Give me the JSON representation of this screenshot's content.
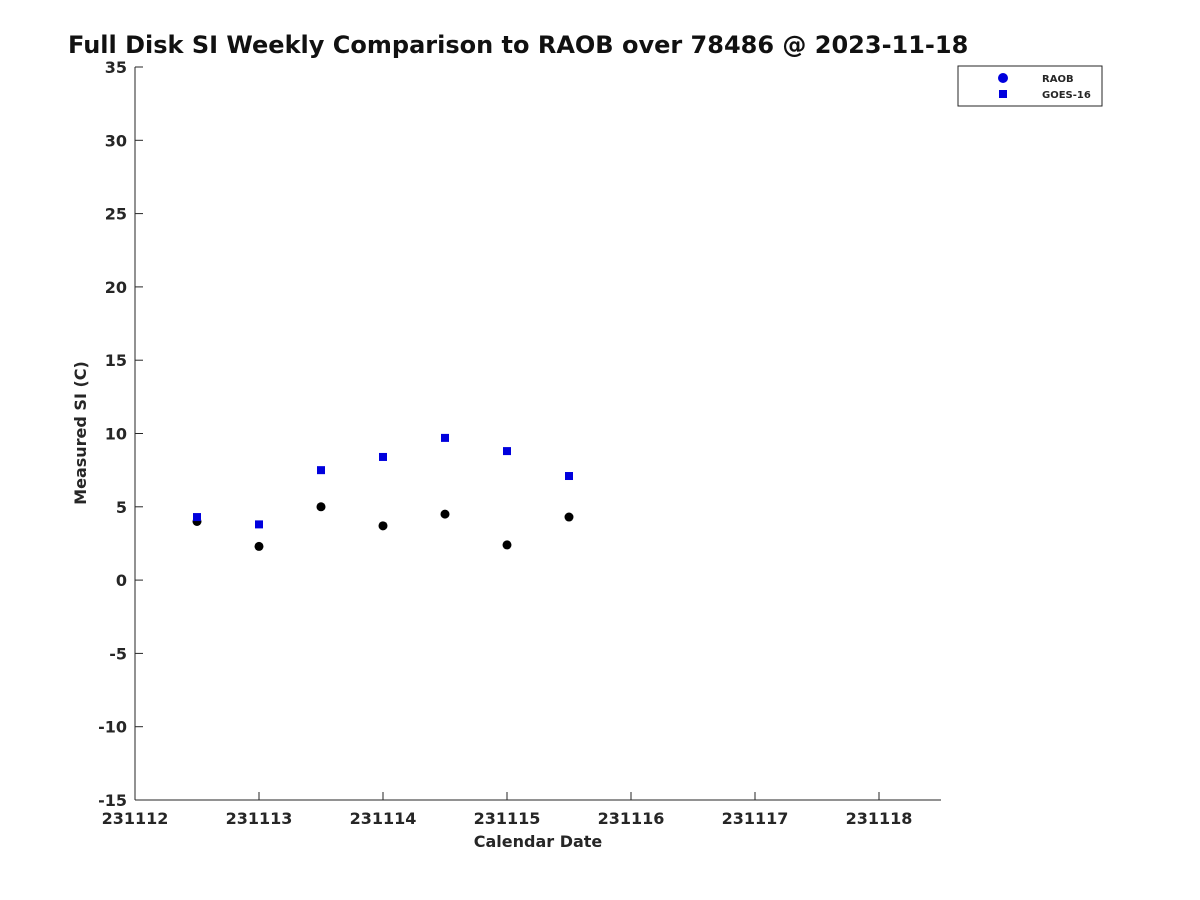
{
  "chart_data": {
    "type": "scatter",
    "title": "Full Disk SI Weekly Comparison to RAOB over 78486 @ 2023-11-18",
    "xlabel": "Calendar Date",
    "ylabel": "Measured SI (C)",
    "xlim": [
      231112,
      231118.5
    ],
    "ylim": [
      -15,
      35
    ],
    "xticks": [
      231112,
      231113,
      231114,
      231115,
      231116,
      231117,
      231118
    ],
    "xtick_labels": [
      "231112",
      "231113",
      "231114",
      "231115",
      "231116",
      "231117",
      "231118"
    ],
    "yticks": [
      -15,
      -10,
      -5,
      0,
      5,
      10,
      15,
      20,
      25,
      30,
      35
    ],
    "ytick_labels": [
      "-15",
      "-10",
      "-5",
      "0",
      "5",
      "10",
      "15",
      "20",
      "25",
      "30",
      "35"
    ],
    "grid": false,
    "legend_position": "top-right",
    "legend": [
      "RAOB",
      "GOES-16"
    ],
    "series": [
      {
        "name": "RAOB",
        "marker": "circle",
        "color": "#000000",
        "legend_color": "#0000dd",
        "x": [
          231112.5,
          231113.0,
          231113.5,
          231114.0,
          231114.5,
          231115.0,
          231115.5
        ],
        "y": [
          4.0,
          2.3,
          5.0,
          3.7,
          4.5,
          2.4,
          4.3
        ]
      },
      {
        "name": "GOES-16",
        "marker": "square",
        "color": "#0000dd",
        "legend_color": "#0000dd",
        "x": [
          231112.5,
          231113.0,
          231113.5,
          231114.0,
          231114.5,
          231115.0,
          231115.5
        ],
        "y": [
          4.3,
          3.8,
          7.5,
          8.4,
          9.7,
          8.8,
          7.1
        ]
      }
    ]
  }
}
